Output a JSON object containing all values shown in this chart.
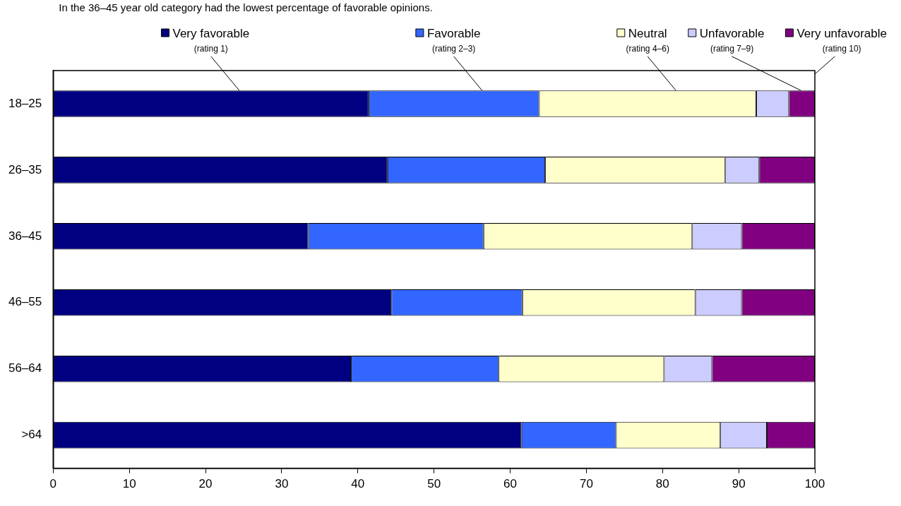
{
  "chart_data": {
    "type": "bar",
    "orientation": "horizontal",
    "stacked": true,
    "annotations": [
      "In the 36–45 year old category had the lowest percentage of favorable opinions."
    ],
    "categories": [
      "18–25",
      "26–35",
      "36–45",
      "46–55",
      "56–64",
      ">64"
    ],
    "series": [
      {
        "name": "Very favorable (rating 1)",
        "color": "#000080",
        "values": [
          41.4,
          43.9,
          33.5,
          44.4,
          39.1,
          61.5
        ]
      },
      {
        "name": "Favorable (rating 2–3)",
        "color": "#3366ff",
        "values": [
          22.4,
          20.7,
          23.0,
          17.2,
          19.4,
          12.4
        ]
      },
      {
        "name": "Neutral (rating 4–6)",
        "color": "#ffffcc",
        "values": [
          28.5,
          23.6,
          27.4,
          22.7,
          21.7,
          13.7
        ]
      },
      {
        "name": "Unfavorable (rating 7–9)",
        "color": "#ccccff",
        "values": [
          4.3,
          4.5,
          6.5,
          6.1,
          6.3,
          6.1
        ]
      },
      {
        "name": "Very unfavorable (rating 10)",
        "color": "#800080",
        "values": [
          3.4,
          7.3,
          9.6,
          9.6,
          13.5,
          6.3
        ]
      }
    ],
    "legend": "top",
    "xlim": [
      0,
      100
    ],
    "xticks": [
      0,
      10,
      20,
      30,
      40,
      50,
      60,
      70,
      80,
      90,
      100
    ]
  }
}
